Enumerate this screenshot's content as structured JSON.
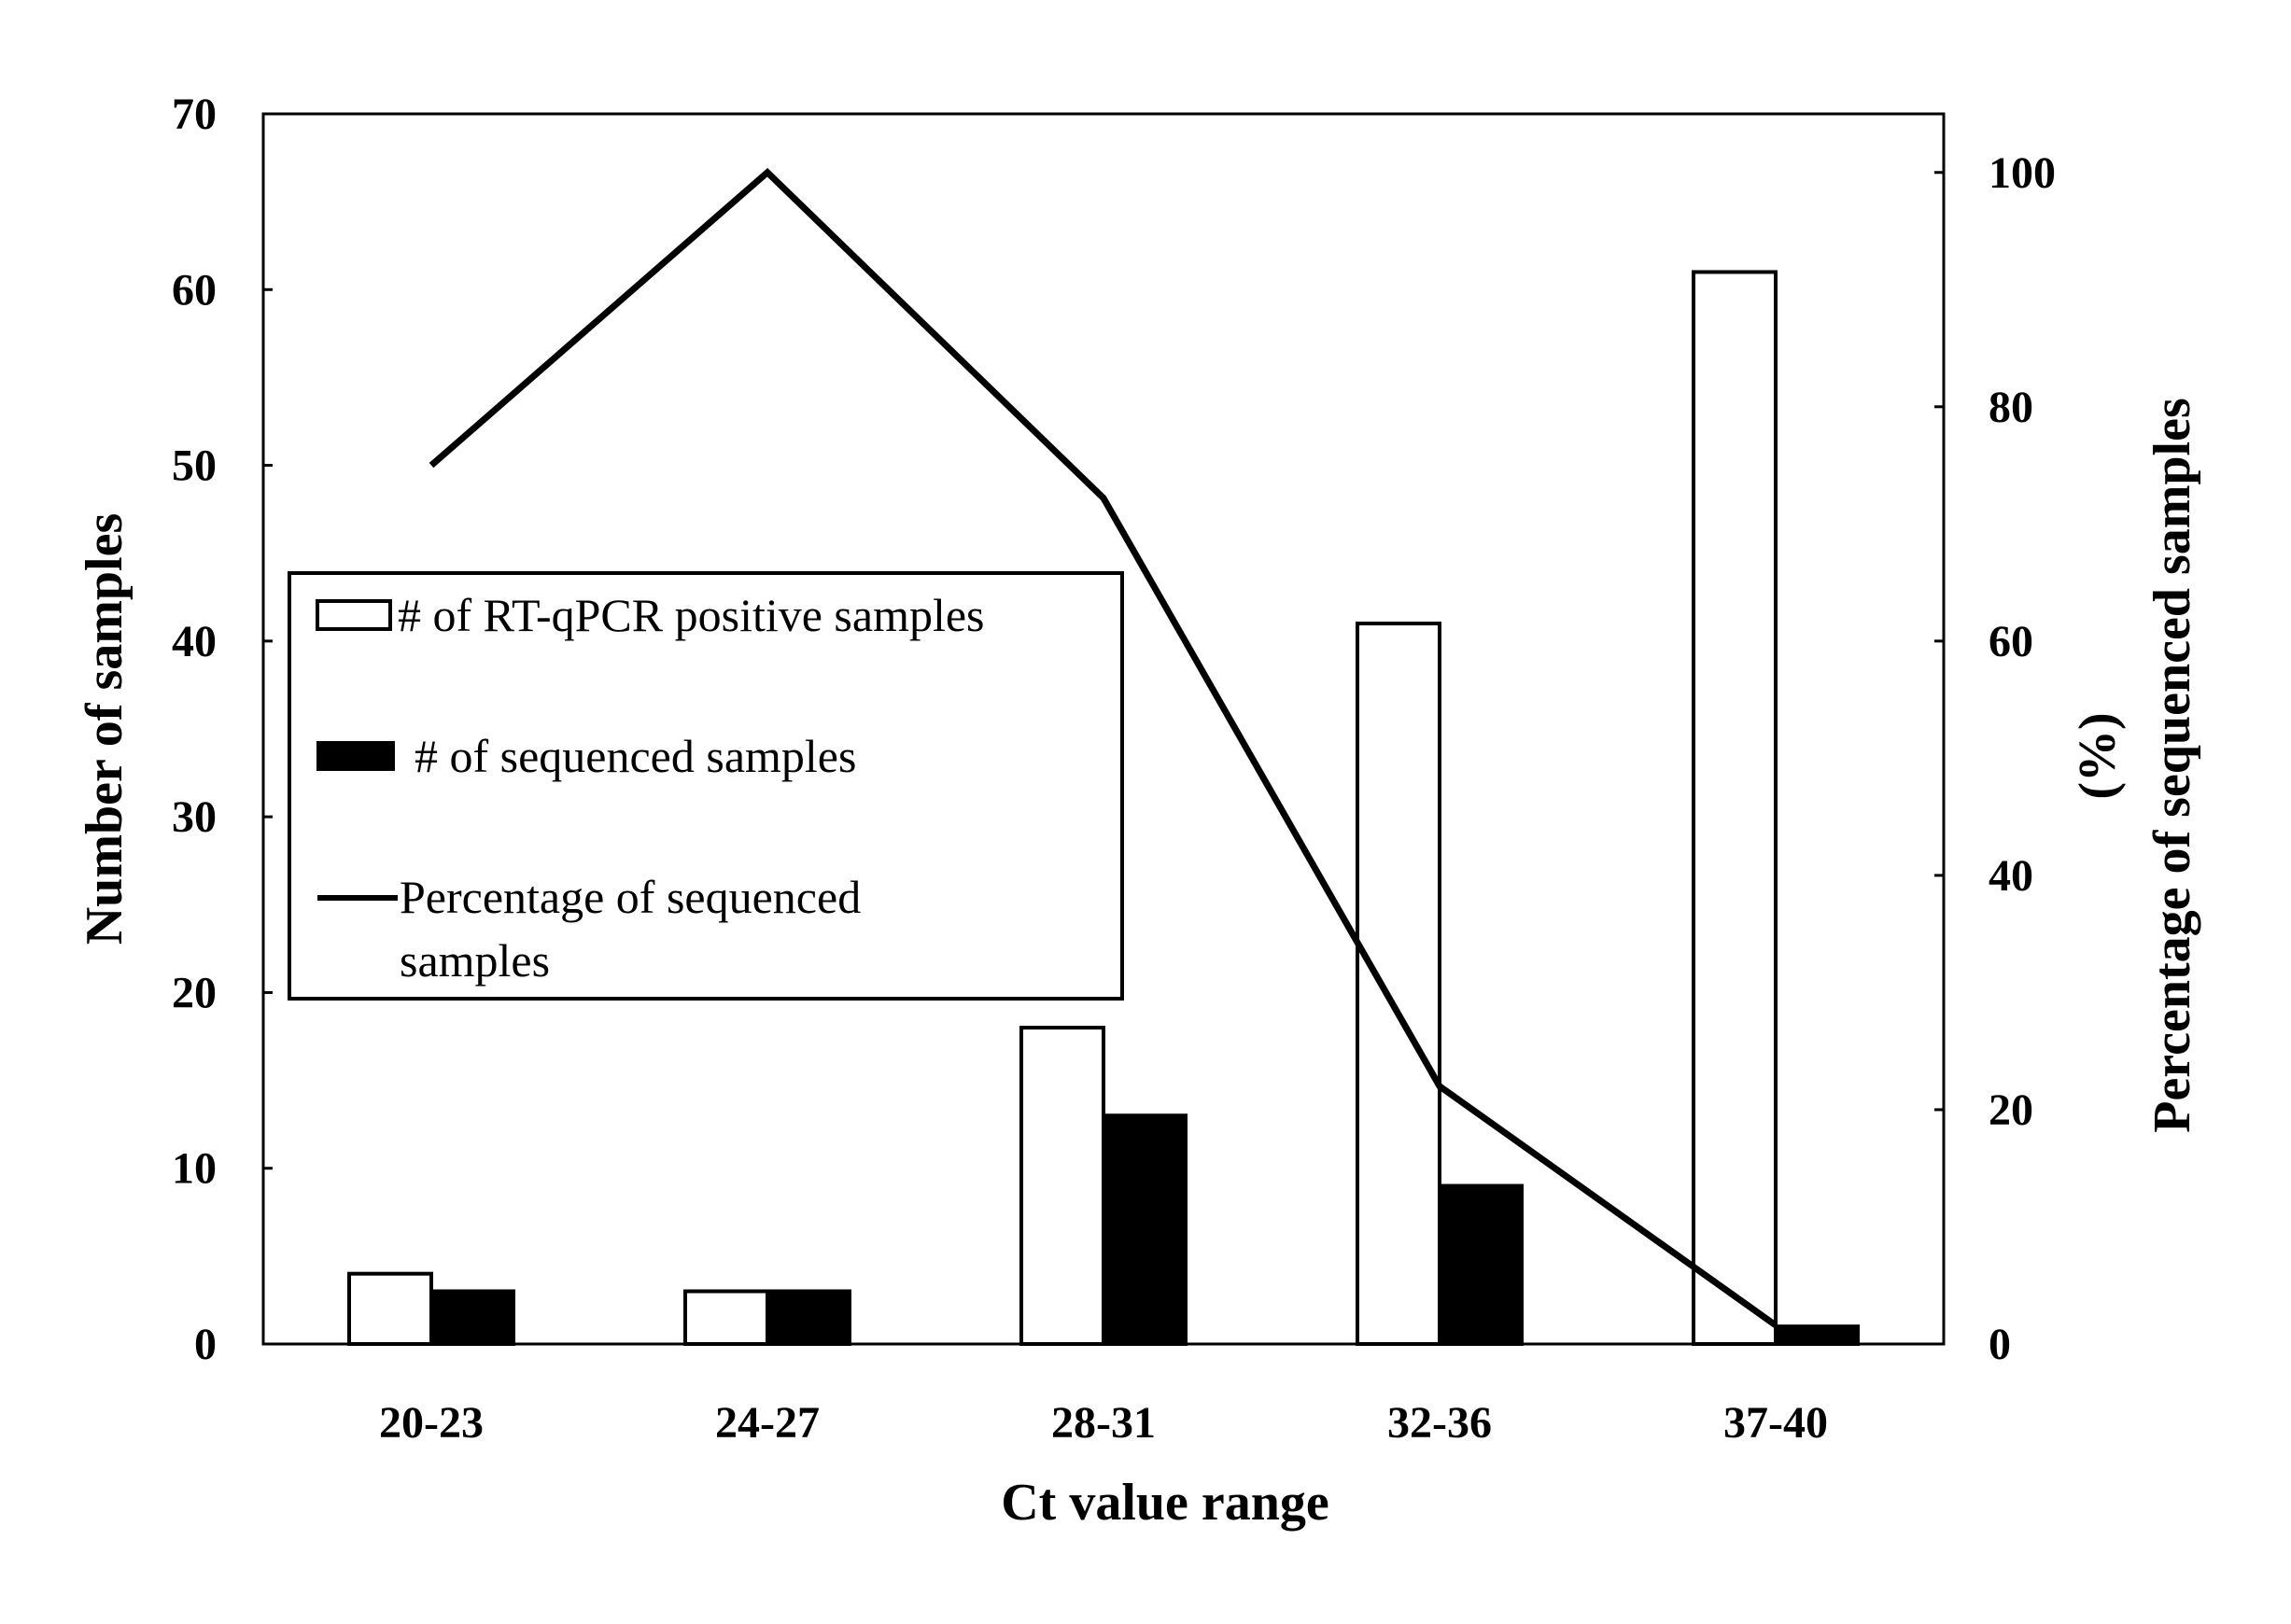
{
  "chart_data": {
    "type": "bar",
    "categories": [
      "20-23",
      "24-27",
      "28-31",
      "32-36",
      "37-40"
    ],
    "series": [
      {
        "name": "# of RT-qPCR positive samples",
        "kind": "bar",
        "axis": "left",
        "fill": "#ffffff",
        "values": [
          4,
          3,
          18,
          41,
          61
        ]
      },
      {
        "name": "# of sequenced samples",
        "kind": "bar",
        "axis": "left",
        "fill": "#000000",
        "values": [
          3,
          3,
          13,
          9,
          1
        ]
      },
      {
        "name": "Percentage of sequenced samples",
        "kind": "line",
        "axis": "right",
        "color": "#000000",
        "values": [
          75,
          100,
          72.2,
          22,
          1.6
        ]
      }
    ],
    "xlabel": "Ct value range",
    "ylabel": "Number of samples",
    "y2label_line1": "Percentage of sequenced samples",
    "y2label_line2": "(%)",
    "ylim": [
      0,
      70
    ],
    "yticks": [
      0,
      10,
      20,
      30,
      40,
      50,
      60,
      70
    ],
    "y2lim": [
      0,
      105
    ],
    "y2ticks": [
      0,
      20,
      40,
      60,
      80,
      100
    ],
    "grid": false,
    "legend": {
      "placement": "center-left",
      "entries": [
        {
          "label": "# of RT-qPCR positive samples",
          "symbol": "bar-outline"
        },
        {
          "label": "# of sequenced samples",
          "symbol": "bar-filled"
        },
        {
          "label_line1": "Percentage of sequenced",
          "label_line2": "samples",
          "symbol": "line"
        }
      ]
    }
  }
}
